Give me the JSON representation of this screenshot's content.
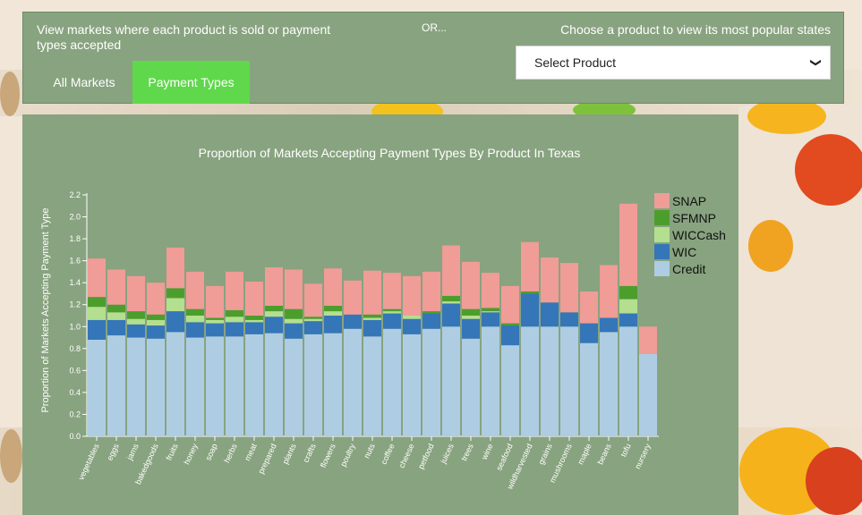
{
  "controls": {
    "description": "View markets where each product is sold or payment types accepted",
    "or_label": "OR...",
    "choose_label": "Choose a product to view its most popular states",
    "tabs": [
      {
        "label": "All Markets",
        "active": false
      },
      {
        "label": "Payment Types",
        "active": true
      }
    ],
    "select_value": "Select Product"
  },
  "colors": {
    "panel": "#88a37f",
    "active_tab": "#5fd84b"
  },
  "chart_data": {
    "type": "bar",
    "stacked": true,
    "title": "Proportion of Markets Accepting Payment Types By Product In Texas",
    "xlabel": "",
    "ylabel": "Proportion of Markets Accepting Payment Type",
    "ylim": [
      0,
      2.2
    ],
    "yticks": [
      "0.0",
      "0.2",
      "0.4",
      "0.6",
      "0.8",
      "1.0",
      "1.2",
      "1.4",
      "1.6",
      "1.8",
      "2.0",
      "2.2"
    ],
    "grid": false,
    "legend_position": "right",
    "categories": [
      "vegetables",
      "eggs",
      "jams",
      "bakedgoods",
      "fruits",
      "honey",
      "soap",
      "herbs",
      "meat",
      "prepared",
      "plants",
      "crafts",
      "flowers",
      "poultry",
      "nuts",
      "coffee",
      "cheese",
      "petfood",
      "juices",
      "trees",
      "wine",
      "seafood",
      "wildharvested",
      "grains",
      "mushrooms",
      "maple",
      "beans",
      "tofu",
      "nursery"
    ],
    "series": [
      {
        "name": "Credit",
        "color": "#aecde3",
        "values": [
          0.88,
          0.92,
          0.9,
          0.89,
          0.95,
          0.9,
          0.91,
          0.91,
          0.93,
          0.94,
          0.89,
          0.93,
          0.94,
          0.98,
          0.91,
          0.98,
          0.93,
          0.98,
          1.0,
          0.89,
          1.0,
          0.83,
          1.0,
          1.0,
          1.0,
          0.85,
          0.95,
          1.0,
          0.75
        ]
      },
      {
        "name": "WIC",
        "color": "#3576b9",
        "values": [
          0.18,
          0.14,
          0.12,
          0.12,
          0.19,
          0.14,
          0.12,
          0.13,
          0.11,
          0.15,
          0.14,
          0.12,
          0.16,
          0.13,
          0.15,
          0.14,
          0.14,
          0.14,
          0.21,
          0.18,
          0.13,
          0.18,
          0.3,
          0.22,
          0.13,
          0.18,
          0.13,
          0.12,
          0.0
        ]
      },
      {
        "name": "WICCash",
        "color": "#b4df8f",
        "values": [
          0.12,
          0.07,
          0.05,
          0.05,
          0.12,
          0.06,
          0.03,
          0.05,
          0.02,
          0.05,
          0.04,
          0.02,
          0.04,
          0.0,
          0.02,
          0.02,
          0.03,
          0.0,
          0.02,
          0.03,
          0.01,
          0.0,
          0.0,
          0.0,
          0.0,
          0.0,
          0.0,
          0.13,
          0.0
        ]
      },
      {
        "name": "SFMNP",
        "color": "#4c9e2c",
        "values": [
          0.09,
          0.07,
          0.07,
          0.05,
          0.09,
          0.06,
          0.02,
          0.06,
          0.04,
          0.05,
          0.09,
          0.02,
          0.05,
          0.0,
          0.03,
          0.02,
          0.0,
          0.02,
          0.05,
          0.06,
          0.03,
          0.02,
          0.02,
          0.0,
          0.0,
          0.0,
          0.0,
          0.12,
          0.0
        ]
      },
      {
        "name": "SNAP",
        "color": "#f09c97",
        "values": [
          0.35,
          0.32,
          0.32,
          0.29,
          0.37,
          0.34,
          0.29,
          0.35,
          0.31,
          0.35,
          0.36,
          0.3,
          0.34,
          0.31,
          0.4,
          0.33,
          0.36,
          0.36,
          0.46,
          0.43,
          0.32,
          0.34,
          0.45,
          0.41,
          0.45,
          0.29,
          0.48,
          0.75,
          0.25
        ]
      }
    ]
  }
}
